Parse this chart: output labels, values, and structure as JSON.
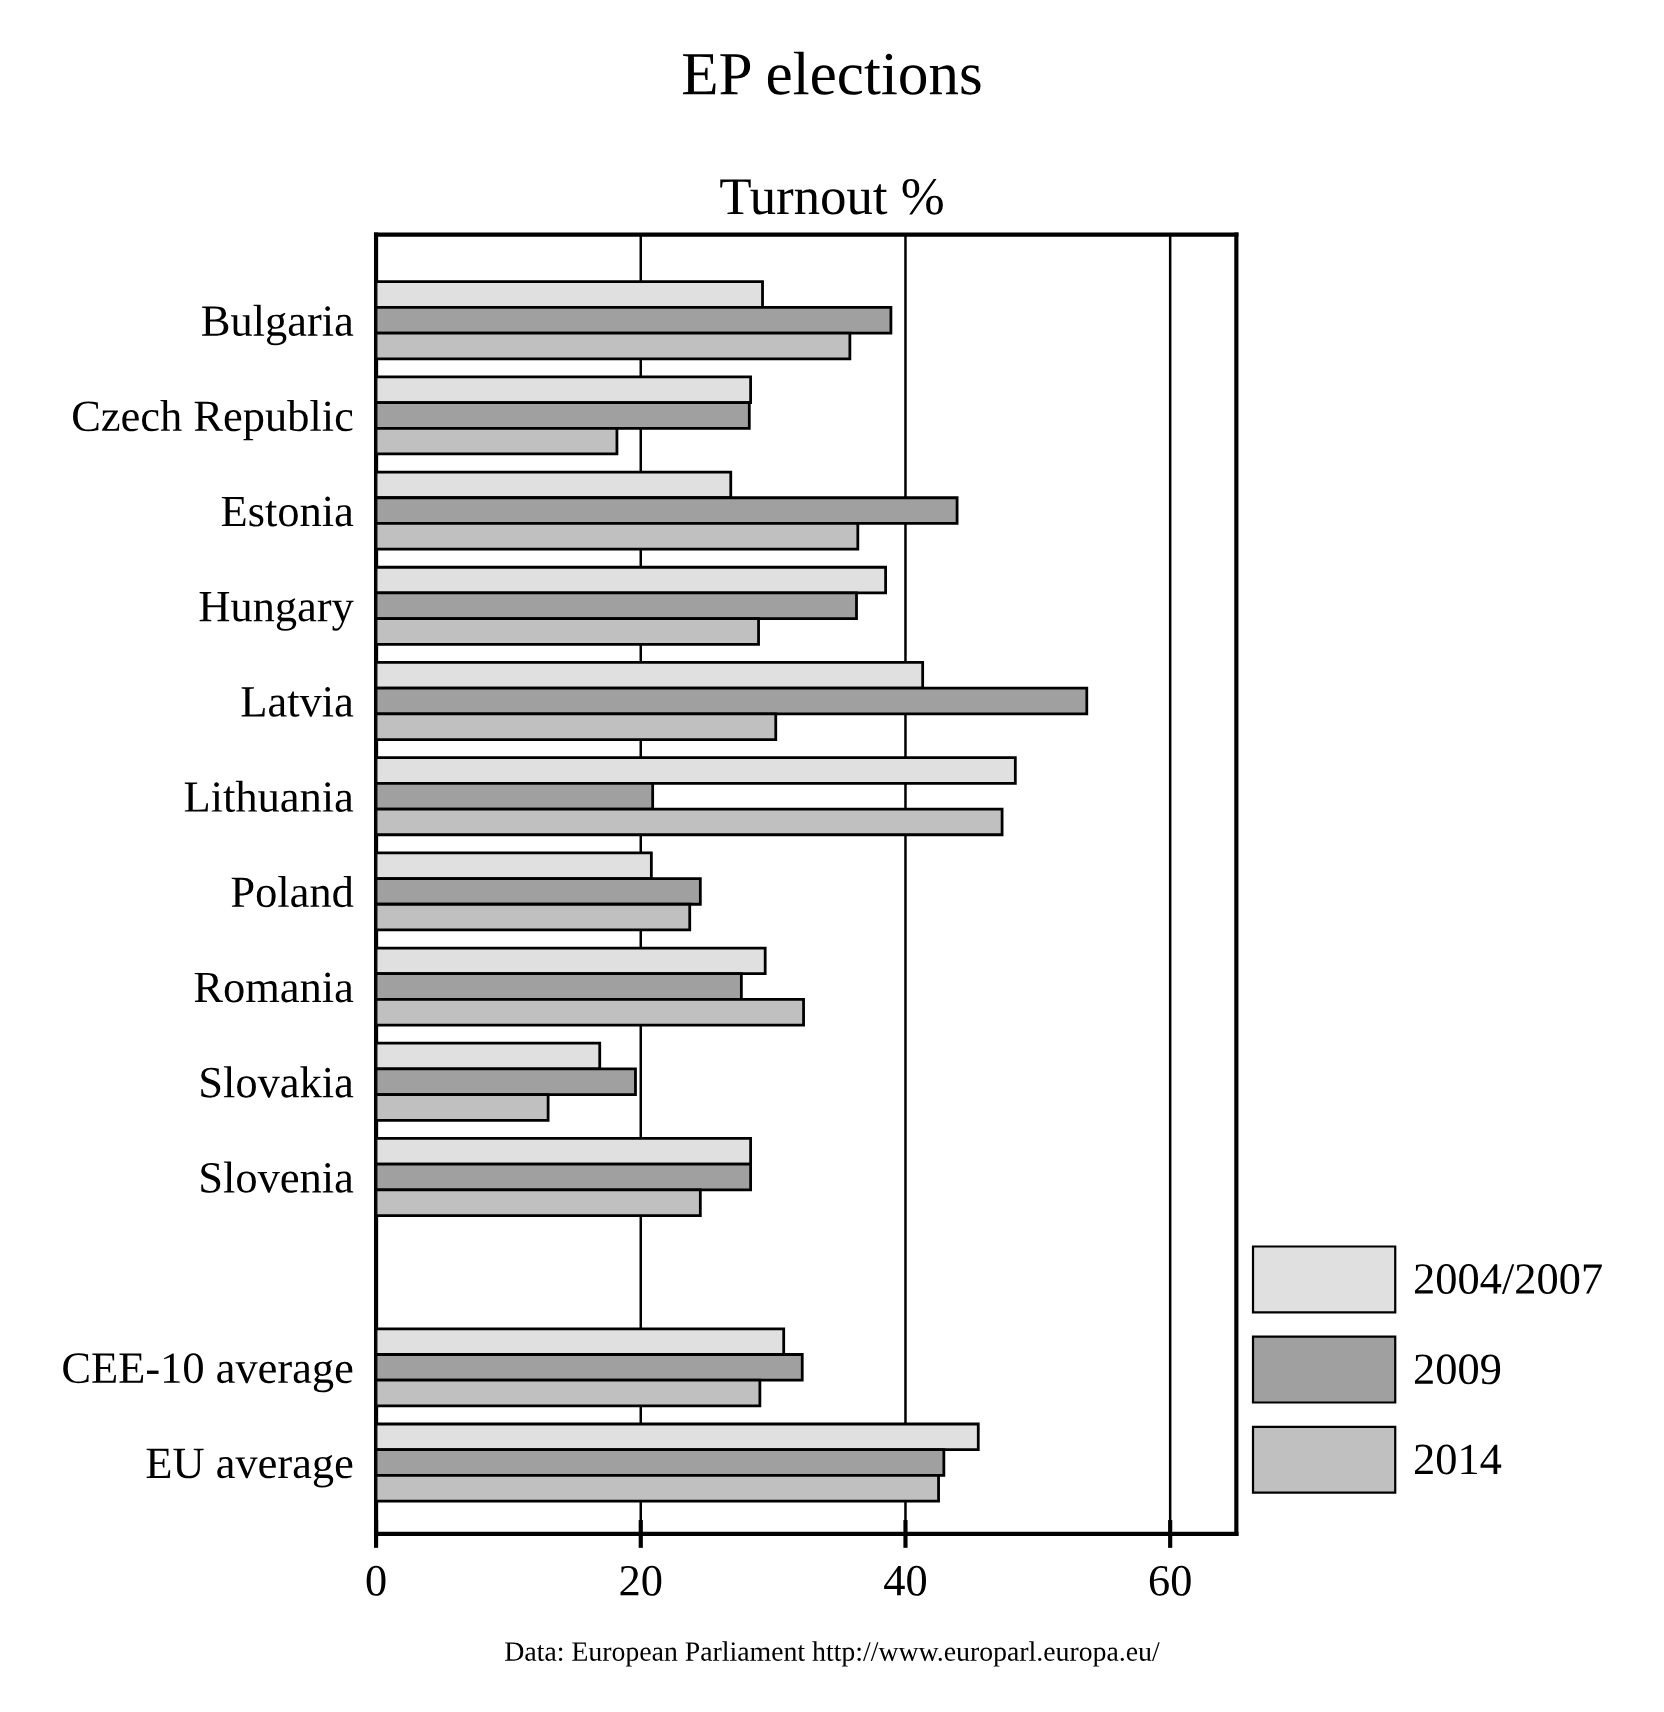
{
  "chart_data": {
    "type": "bar",
    "orientation": "horizontal",
    "title": "EP elections",
    "subtitle": "Turnout %",
    "categories": [
      "Bulgaria",
      "Czech Republic",
      "Estonia",
      "Hungary",
      "Latvia",
      "Lithuania",
      "Poland",
      "Romania",
      "Slovakia",
      "Slovenia",
      null,
      "CEE-10 average",
      "EU average"
    ],
    "series": [
      {
        "name": "2004/2007",
        "color": "#e0e0e0",
        "values": [
          29.2,
          28.3,
          26.8,
          38.5,
          41.3,
          48.3,
          20.8,
          29.4,
          16.9,
          28.3,
          null,
          30.8,
          45.5
        ]
      },
      {
        "name": "2009",
        "color": "#a0a0a0",
        "values": [
          38.9,
          28.2,
          43.9,
          36.3,
          53.7,
          20.9,
          24.5,
          27.6,
          19.6,
          28.3,
          null,
          32.2,
          42.9
        ]
      },
      {
        "name": "2014",
        "color": "#c0c0c0",
        "values": [
          35.8,
          18.2,
          36.4,
          28.9,
          30.2,
          47.3,
          23.7,
          32.3,
          13.0,
          24.5,
          null,
          29.0,
          42.5
        ]
      }
    ],
    "xlim": [
      0,
      65
    ],
    "xticks": [
      0,
      20,
      40,
      60
    ],
    "grid": "x",
    "legend": "right",
    "annotations": [
      "Data: European Parliament http://www.europarl.europa.eu/"
    ]
  }
}
